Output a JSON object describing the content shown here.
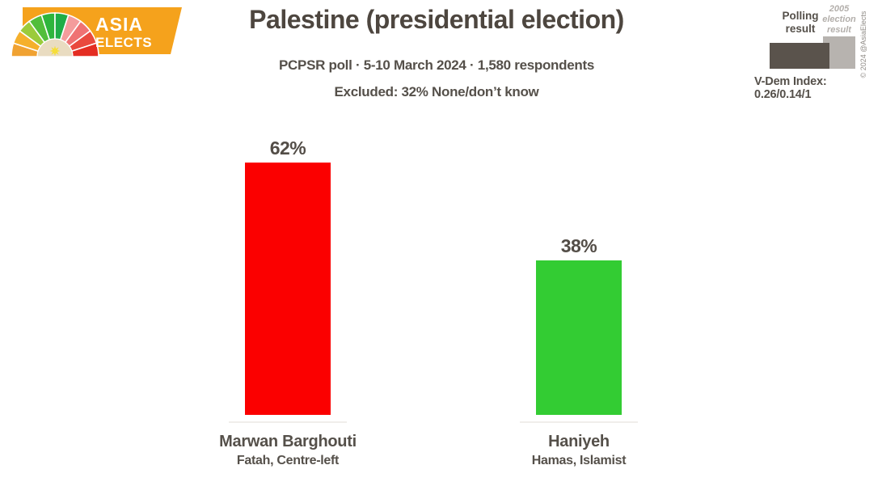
{
  "branding": {
    "logo_text_line1": "ASIA",
    "logo_text_line2": "ELECTS",
    "logo_orange": "#f5a21c",
    "copyright_vertical": "© 2024 @AsiaElects"
  },
  "header": {
    "title": "Palestine (presidential election)",
    "subtitle": "PCPSR poll · 5-10 March 2024 · 1,580 respondents",
    "excluded_note": "Excluded: 32% None/don’t know"
  },
  "legend": {
    "polling_label": "Polling result",
    "election_label": "2005 election result",
    "polling_color": "#5a534c",
    "election_color": "#b7b3af",
    "vdem_index": "V-Dem Index: 0.26/0.14/1"
  },
  "chart_data": {
    "type": "bar",
    "title": "Palestine (presidential election)",
    "subtitle": "PCPSR poll · 5-10 March 2024 · 1,580 respondents",
    "note": "Excluded: 32% None/don’t know",
    "unit": "percent",
    "ylim": [
      0,
      100
    ],
    "grid": false,
    "legend_position": "top-right",
    "legend_entries": [
      "Polling result",
      "2005 election result"
    ],
    "categories": [
      "Marwan Barghouti",
      "Haniyeh"
    ],
    "category_sublabels": [
      "Fatah, Centre-left",
      "Hamas, Islamist"
    ],
    "values": [
      62,
      38
    ],
    "value_labels": [
      "62%",
      "38%"
    ],
    "bar_colors": [
      "#fb0000",
      "#33cc33"
    ]
  }
}
